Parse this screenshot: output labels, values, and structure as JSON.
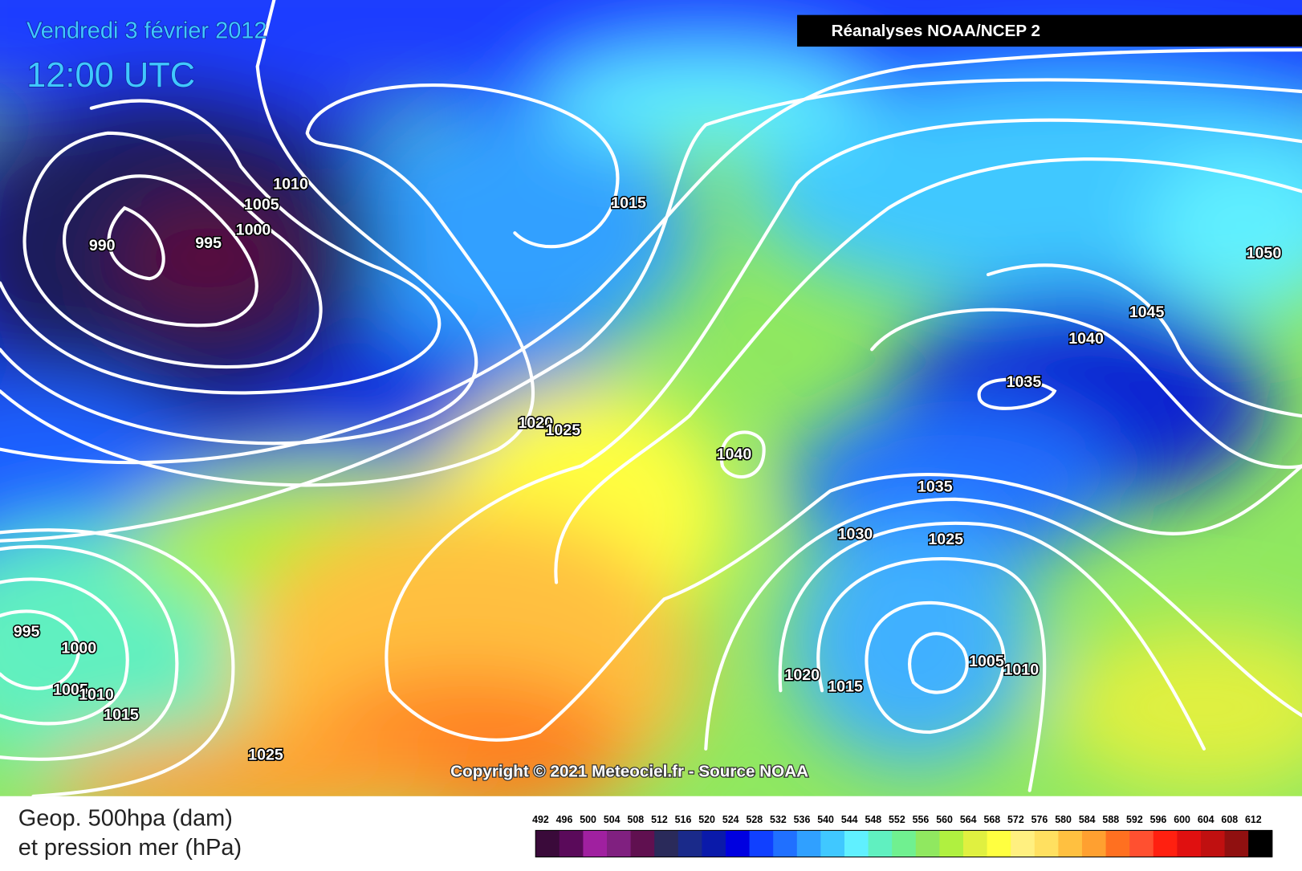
{
  "header": {
    "date": "Vendredi 3 février 2012",
    "time": "12:00 UTC",
    "source": "Réanalyses NOAA/NCEP 2"
  },
  "isobar_labels": [
    1010,
    1005,
    1000,
    990,
    995,
    1015,
    1020,
    1025,
    1040,
    1035,
    1045,
    1040,
    1050,
    1035,
    1030,
    1025,
    995,
    1000,
    1005,
    1010,
    1015,
    1025,
    1020,
    1015,
    1005,
    1010
  ],
  "copyright": "Copyright © 2021 Meteociel.fr - Source NOAA",
  "legend": {
    "title_line1": "Geop. 500hpa (dam)",
    "title_line2": "et pression mer (hPa)",
    "scale": {
      "values": [
        492,
        496,
        500,
        504,
        508,
        512,
        516,
        520,
        524,
        528,
        532,
        536,
        540,
        544,
        548,
        552,
        556,
        560,
        564,
        568,
        572,
        576,
        580,
        584,
        588,
        592,
        596,
        600,
        604,
        608,
        612
      ],
      "colors": [
        "#3a0a3a",
        "#5a0a5a",
        "#a020a0",
        "#802080",
        "#601050",
        "#2a2a5a",
        "#1a2a8a",
        "#0a1aaa",
        "#0000e0",
        "#1040ff",
        "#2070ff",
        "#30a0ff",
        "#40c8ff",
        "#60f0ff",
        "#60f0c0",
        "#70f090",
        "#90e860",
        "#b0f040",
        "#e0f040",
        "#ffff40",
        "#fff080",
        "#ffe060",
        "#ffc040",
        "#ffa030",
        "#ff7020",
        "#ff5030",
        "#ff2010",
        "#e01010",
        "#c01010",
        "#901010",
        "#000000"
      ]
    }
  }
}
